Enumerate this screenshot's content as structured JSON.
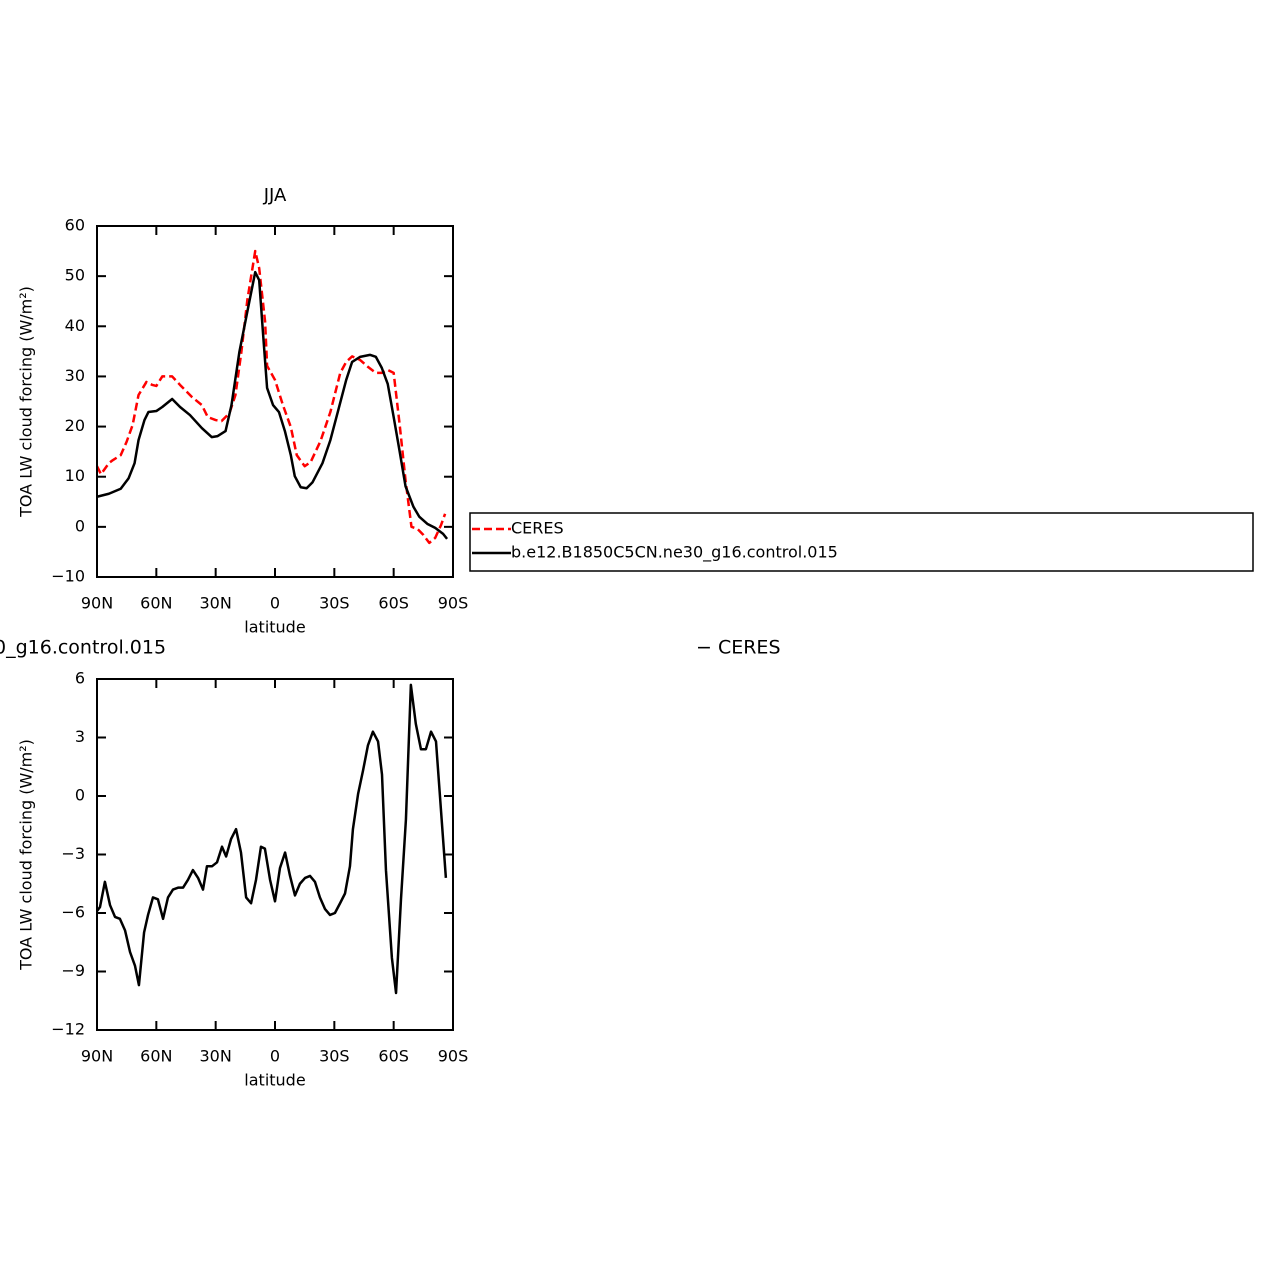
{
  "chart_data": [
    {
      "type": "line",
      "title": "JJA",
      "xlabel": "latitude",
      "ylabel": "TOA LW cloud forcing (W/m²)",
      "xlim": [
        90,
        -90
      ],
      "xticks": [
        {
          "value": 90,
          "label": "90N"
        },
        {
          "value": 60,
          "label": "60N"
        },
        {
          "value": 30,
          "label": "30N"
        },
        0,
        {
          "value": -30,
          "label": "30S"
        },
        {
          "value": -60,
          "label": "60S"
        },
        {
          "value": -90,
          "label": "90S"
        }
      ],
      "ylim": [
        -10,
        60
      ],
      "yticks": [
        {
          "value": -10,
          "label": "−10"
        },
        0,
        10,
        20,
        30,
        40,
        50,
        60
      ],
      "legend": "right",
      "series": [
        {
          "name": "CERES",
          "color": "#ff0000",
          "line_style": "dashed",
          "x": [
            90,
            88,
            84,
            82,
            78,
            75,
            72,
            69,
            65,
            62,
            60,
            57,
            52,
            48,
            42,
            37,
            34,
            30,
            27,
            23,
            20,
            17,
            14,
            10,
            8,
            5,
            4,
            0,
            -4,
            -8,
            -11,
            -15,
            -18,
            -23,
            -28,
            -33,
            -36,
            -39,
            -43,
            -47,
            -51,
            -54,
            -57,
            -60,
            -63,
            -66,
            -69,
            -72,
            -75,
            -78,
            -81,
            -84,
            -86
          ],
          "values": [
            12.1,
            10.5,
            12.7,
            13.3,
            14.3,
            17,
            20.3,
            26.3,
            28.9,
            28.3,
            28.1,
            30,
            30,
            28.3,
            25.9,
            24.3,
            21.9,
            21.3,
            21.1,
            22.7,
            26.3,
            34.9,
            45.2,
            55,
            51.6,
            40.9,
            32.1,
            29.3,
            24.3,
            19.9,
            14.3,
            12.1,
            12.9,
            17.1,
            22.9,
            30.7,
            32.9,
            34,
            33.3,
            31.9,
            30.7,
            30.7,
            31.3,
            30.7,
            20.5,
            9.3,
            0,
            -0.4,
            -1.6,
            -3.2,
            -2.2,
            0.4,
            2.6
          ]
        },
        {
          "name": "b.e12.B1850C5CN.ne30_g16.control.015",
          "color": "#000000",
          "line_style": "solid",
          "x": [
            90,
            84,
            78,
            74,
            71,
            69,
            66,
            64,
            60,
            57,
            52,
            48,
            43,
            37,
            32,
            29,
            25,
            22,
            18,
            14,
            10,
            8,
            6,
            4,
            1,
            -2,
            -5,
            -8,
            -10,
            -13,
            -16,
            -19,
            -24,
            -28,
            -32,
            -36,
            -39,
            -43,
            -48,
            -51,
            -54,
            -57,
            -60,
            -63,
            -66,
            -70,
            -73,
            -77,
            -81,
            -85,
            -87
          ],
          "values": [
            6,
            6.6,
            7.6,
            9.7,
            12.7,
            17.3,
            21.3,
            22.9,
            23.1,
            23.9,
            25.5,
            23.9,
            22.3,
            19.7,
            17.9,
            18.1,
            19.1,
            24.3,
            34.9,
            42.9,
            50.8,
            49.2,
            38.3,
            27.7,
            24.3,
            22.9,
            19.1,
            14.3,
            10.1,
            7.9,
            7.7,
            8.9,
            12.7,
            17.3,
            23.3,
            29.3,
            32.9,
            33.9,
            34.3,
            33.9,
            31.7,
            28.5,
            21.9,
            15.1,
            8.1,
            4,
            2,
            0.6,
            -0.2,
            -1.4,
            -2.4
          ]
        }
      ]
    },
    {
      "type": "line",
      "title": "0_g16.control.015",
      "subtitle": "− CERES",
      "xlabel": "latitude",
      "ylabel": "TOA LW cloud forcing (W/m²)",
      "xlim": [
        90,
        -90
      ],
      "xticks": [
        {
          "value": 90,
          "label": "90N"
        },
        {
          "value": 60,
          "label": "60N"
        },
        {
          "value": 30,
          "label": "30N"
        },
        0,
        {
          "value": -30,
          "label": "30S"
        },
        {
          "value": -60,
          "label": "60S"
        },
        {
          "value": -90,
          "label": "90S"
        }
      ],
      "ylim": [
        -12,
        6
      ],
      "yticks": [
        {
          "value": -12,
          "label": "−12"
        },
        {
          "value": -9,
          "label": "−9"
        },
        {
          "value": -6,
          "label": "−6"
        },
        {
          "value": -3,
          "label": "−3"
        },
        0,
        3,
        6
      ],
      "series": [
        {
          "color": "#000000",
          "line_style": "solid",
          "x": [
            90,
            88.5,
            86,
            83.4,
            80.9,
            78.4,
            75.8,
            73.3,
            70.8,
            68.8,
            66.2,
            64.2,
            61.7,
            59.2,
            56.6,
            54.1,
            51.6,
            49,
            46.5,
            44,
            41.5,
            38.9,
            36.4,
            34.4,
            31.8,
            29.3,
            26.8,
            24.7,
            22.2,
            19.7,
            17.2,
            14.6,
            12.1,
            9.6,
            7.1,
            5.1,
            2.5,
            0,
            -2.5,
            -5.1,
            -7.6,
            -10.1,
            -12.6,
            -15.2,
            -17.7,
            -20.2,
            -22.7,
            -25.3,
            -27.8,
            -30.3,
            -32.9,
            -35.4,
            -37.9,
            -39.4,
            -42,
            -44.5,
            -47,
            -49.5,
            -52.1,
            -54.1,
            -56.1,
            -59.1,
            -61.2,
            -63.7,
            -66.2,
            -68.7,
            -71.2,
            -73.8,
            -76.3,
            -78.9,
            -81.4,
            -83.9,
            -86.4
          ],
          "values": [
            -5.9,
            -5.7,
            -4.4,
            -5.6,
            -6.2,
            -6.3,
            -6.9,
            -8,
            -8.7,
            -9.7,
            -7,
            -6.1,
            -5.2,
            -5.3,
            -6.3,
            -5.2,
            -4.8,
            -4.7,
            -4.7,
            -4.3,
            -3.8,
            -4.2,
            -4.8,
            -3.6,
            -3.6,
            -3.4,
            -2.6,
            -3.1,
            -2.2,
            -1.7,
            -2.9,
            -5.2,
            -5.5,
            -4.3,
            -2.6,
            -2.7,
            -4.3,
            -5.4,
            -3.7,
            -2.9,
            -4.1,
            -5.1,
            -4.5,
            -4.2,
            -4.1,
            -4.4,
            -5.2,
            -5.8,
            -6.1,
            -6,
            -5.5,
            -5,
            -3.6,
            -1.7,
            0.1,
            1.3,
            2.6,
            3.3,
            2.8,
            1.1,
            -3.8,
            -8.3,
            -10.1,
            -5.3,
            -1.2,
            5.7,
            3.7,
            2.4,
            2.4,
            3.3,
            2.8,
            -0.7,
            -4.2
          ]
        }
      ]
    }
  ]
}
